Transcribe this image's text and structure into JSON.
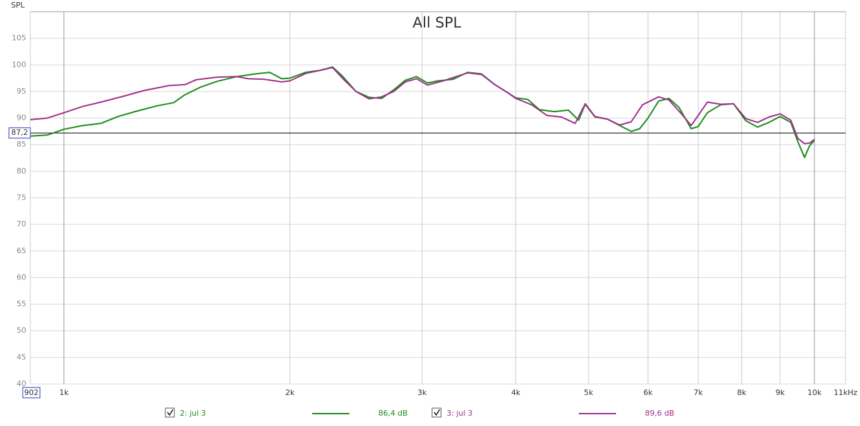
{
  "chart_data": {
    "type": "line",
    "title": "All SPL",
    "y_label": "SPL",
    "log_x": true,
    "grid": true,
    "xlim": [
      902,
      11000
    ],
    "ylim": [
      40,
      110
    ],
    "xticks": [
      902,
      {
        "value": 1000,
        "label": "1k"
      },
      {
        "value": 2000,
        "label": "2k"
      },
      {
        "value": 3000,
        "label": "3k"
      },
      {
        "value": 4000,
        "label": "4k"
      },
      {
        "value": 5000,
        "label": "5k"
      },
      {
        "value": 6000,
        "label": "6k"
      },
      {
        "value": 7000,
        "label": "7k"
      },
      {
        "value": 8000,
        "label": "8k"
      },
      {
        "value": 9000,
        "label": "9k"
      },
      {
        "value": 10000,
        "label": "10k"
      },
      {
        "value": 11000,
        "label": "11kHz"
      }
    ],
    "yticks": [
      40,
      45,
      50,
      55,
      60,
      65,
      70,
      75,
      80,
      85,
      90,
      95,
      100,
      105
    ],
    "cursor": {
      "value": 87.2,
      "label": "87,2"
    },
    "series": [
      {
        "name": "2: jul 3",
        "color": "#1a8c1a",
        "legend_value": {
          "value": 86.4,
          "label": "86,4 dB"
        },
        "x": [
          902,
          950,
          1000,
          1060,
          1120,
          1180,
          1250,
          1330,
          1400,
          1450,
          1520,
          1600,
          1700,
          1800,
          1880,
          1950,
          2000,
          2100,
          2200,
          2280,
          2350,
          2450,
          2550,
          2650,
          2750,
          2850,
          2950,
          3050,
          3150,
          3300,
          3450,
          3600,
          3750,
          3900,
          4000,
          4150,
          4300,
          4500,
          4700,
          4850,
          4950,
          5100,
          5300,
          5500,
          5700,
          5850,
          6000,
          6200,
          6400,
          6600,
          6850,
          7000,
          7200,
          7500,
          7800,
          8100,
          8400,
          8700,
          9000,
          9300,
          9500,
          9700,
          9850,
          10000
        ],
        "values": [
          86.6,
          86.8,
          87.9,
          88.6,
          89.0,
          90.3,
          91.3,
          92.3,
          92.9,
          94.4,
          95.8,
          96.9,
          97.8,
          98.3,
          98.6,
          97.4,
          97.5,
          98.6,
          99.0,
          99.6,
          97.9,
          95.0,
          93.9,
          93.7,
          95.3,
          97.1,
          97.8,
          96.6,
          97.0,
          97.3,
          98.6,
          98.3,
          96.3,
          94.8,
          93.8,
          93.5,
          91.6,
          91.2,
          91.5,
          89.6,
          92.6,
          90.2,
          89.8,
          88.6,
          87.5,
          88.0,
          90.0,
          93.2,
          93.7,
          92.0,
          88.0,
          88.4,
          91.0,
          92.5,
          92.7,
          89.5,
          88.3,
          89.2,
          90.3,
          89.2,
          85.6,
          82.6,
          84.8,
          85.8
        ]
      },
      {
        "name": "3: jul 3",
        "color": "#a0308c",
        "legend_value": {
          "value": 89.6,
          "label": "89,6 dB"
        },
        "x": [
          902,
          950,
          1000,
          1060,
          1120,
          1200,
          1280,
          1380,
          1450,
          1500,
          1600,
          1700,
          1760,
          1850,
          1950,
          2000,
          2100,
          2200,
          2280,
          2350,
          2450,
          2550,
          2650,
          2750,
          2850,
          2950,
          3050,
          3200,
          3450,
          3600,
          3750,
          3900,
          4000,
          4200,
          4400,
          4600,
          4800,
          4950,
          5100,
          5300,
          5500,
          5700,
          5900,
          6200,
          6400,
          6650,
          6850,
          7000,
          7200,
          7500,
          7800,
          8100,
          8400,
          8700,
          9000,
          9300,
          9500,
          9700,
          9850,
          10000
        ],
        "values": [
          89.7,
          90.0,
          91.0,
          92.2,
          93.0,
          94.1,
          95.2,
          96.1,
          96.3,
          97.2,
          97.7,
          97.8,
          97.4,
          97.3,
          96.8,
          97.0,
          98.4,
          99.0,
          99.5,
          97.5,
          95.0,
          93.6,
          94.0,
          95.0,
          96.8,
          97.4,
          96.2,
          97.0,
          98.5,
          98.2,
          96.3,
          94.8,
          93.7,
          92.5,
          90.5,
          90.2,
          89.0,
          92.7,
          90.3,
          89.8,
          88.7,
          89.3,
          92.5,
          94.0,
          93.4,
          90.8,
          88.6,
          90.5,
          93.0,
          92.6,
          92.7,
          89.9,
          89.2,
          90.2,
          90.8,
          89.6,
          86.2,
          85.2,
          85.3,
          86.0
        ]
      }
    ]
  }
}
